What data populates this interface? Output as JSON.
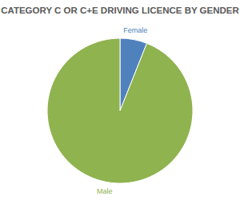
{
  "chart_data": {
    "type": "pie",
    "title": "CATEGORY C OR C+E DRIVING LICENCE BY GENDER",
    "categories": [
      "Female",
      "Male"
    ],
    "values": [
      6,
      94
    ],
    "colors": [
      "#4f81bd",
      "#8fb34f"
    ]
  }
}
